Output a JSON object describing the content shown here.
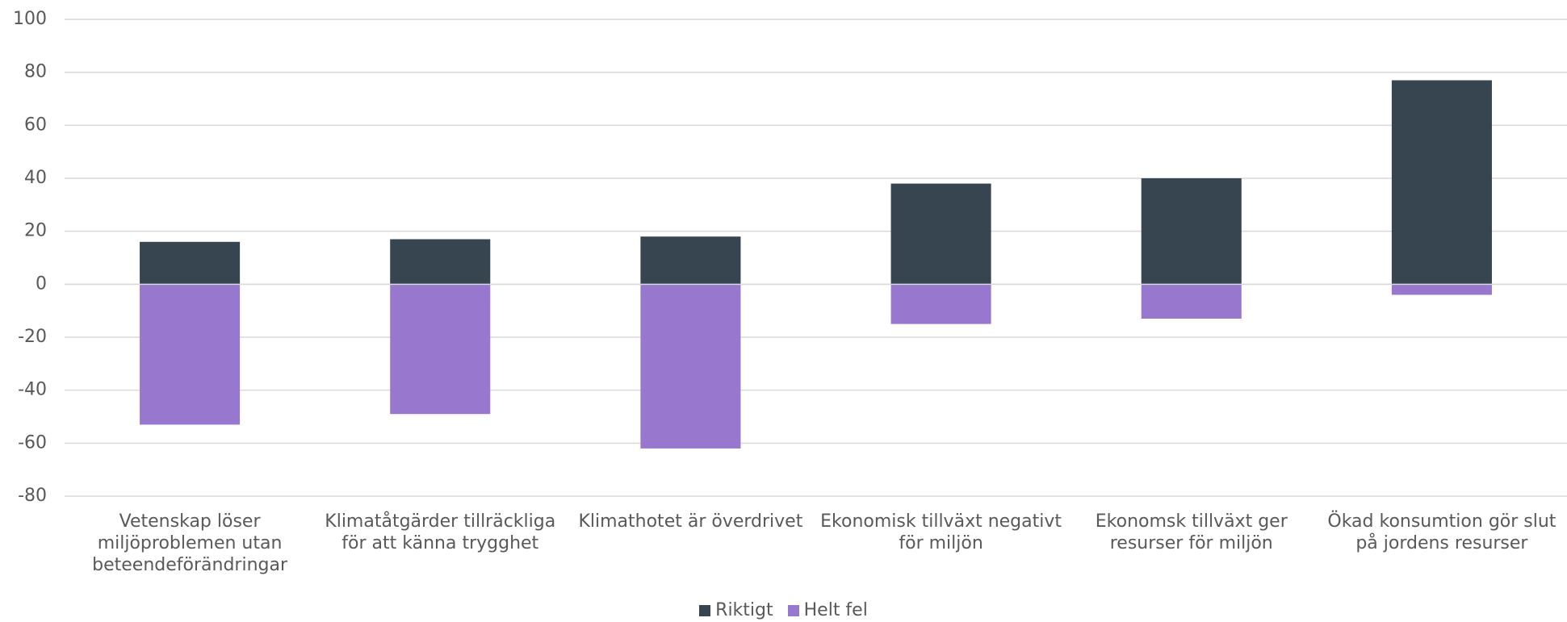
{
  "chart_data": {
    "type": "bar",
    "categories": [
      "Vetenskap löser miljöproblemen utan beteendeförändringar",
      "Klimatåtgärder tillräckliga för att känna trygghet",
      "Klimathotet är överdrivet",
      "Ekonomisk tillväxt negativt för miljön",
      "Ekonomsk tillväxt ger resurser för miljön",
      "Ökad konsumtion gör slut på jordens resurser"
    ],
    "series": [
      {
        "name": "Riktigt",
        "color": "#36454f",
        "values": [
          16,
          17,
          18,
          38,
          40,
          77
        ]
      },
      {
        "name": "Helt fel",
        "color": "#9778ce",
        "values": [
          -53,
          -49,
          -62,
          -15,
          -13,
          -4
        ]
      }
    ],
    "ylim": [
      -80,
      100
    ],
    "yticks": [
      -80,
      -60,
      -40,
      -20,
      0,
      20,
      40,
      60,
      80,
      100
    ],
    "grid": true,
    "legend": "bottom"
  }
}
